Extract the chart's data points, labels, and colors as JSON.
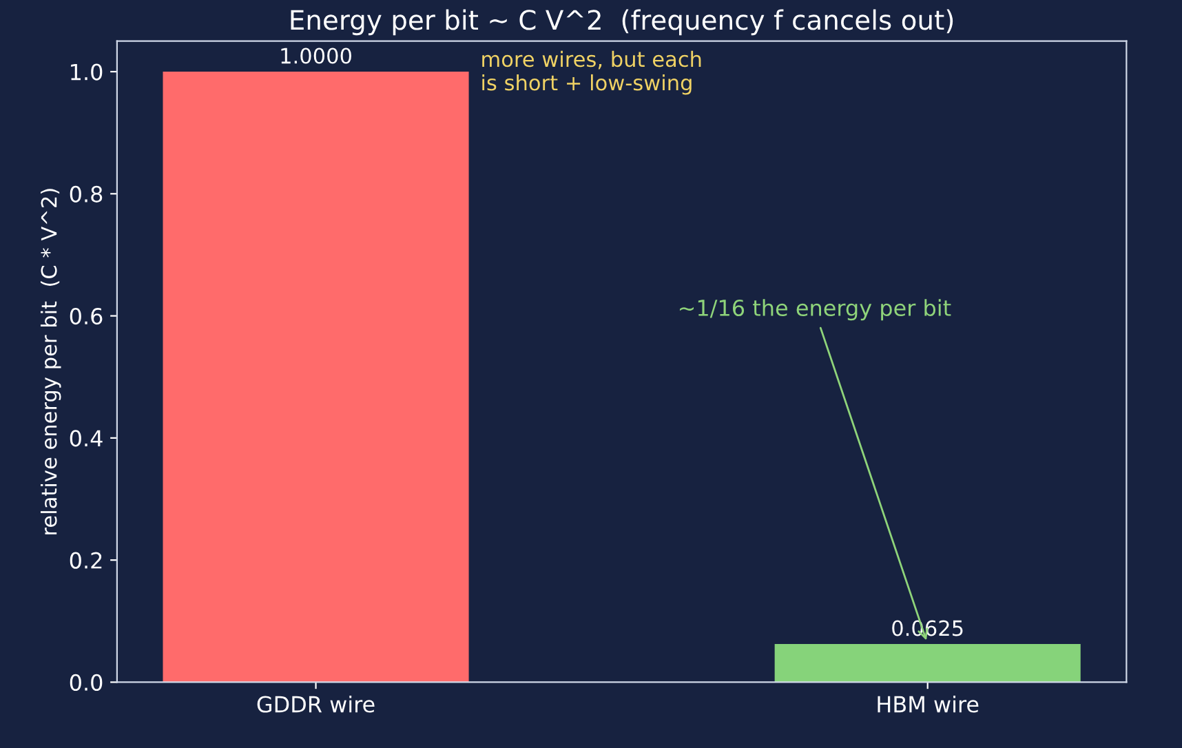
{
  "chart_data": {
    "type": "bar",
    "title": "Energy per bit ~ C V^2  (frequency f cancels out)",
    "ylabel": "relative energy per bit  (C * V^2)",
    "categories": [
      "GDDR wire",
      "HBM wire"
    ],
    "values": [
      1.0,
      0.0625
    ],
    "colors": [
      "#ff6b6b",
      "#86d37a"
    ],
    "value_labels": [
      "1.0000",
      "0.0625"
    ],
    "ylim": [
      0,
      1.05
    ],
    "yticks": [
      {
        "value": 0,
        "label": "0.0"
      },
      {
        "value": 0.2,
        "label": "0.2"
      },
      {
        "value": 0.4,
        "label": "0.4"
      },
      {
        "value": 0.6,
        "label": "0.6"
      },
      {
        "value": 0.8,
        "label": "0.8"
      },
      {
        "value": 1.0,
        "label": "1.0"
      }
    ],
    "annotations": [
      "more wires, but each\nis short + low-swing",
      {
        "text": "~1/16 the energy per bit",
        "x": "HBM wire",
        "y": 0.0625
      }
    ],
    "grid": false,
    "legend": false
  }
}
